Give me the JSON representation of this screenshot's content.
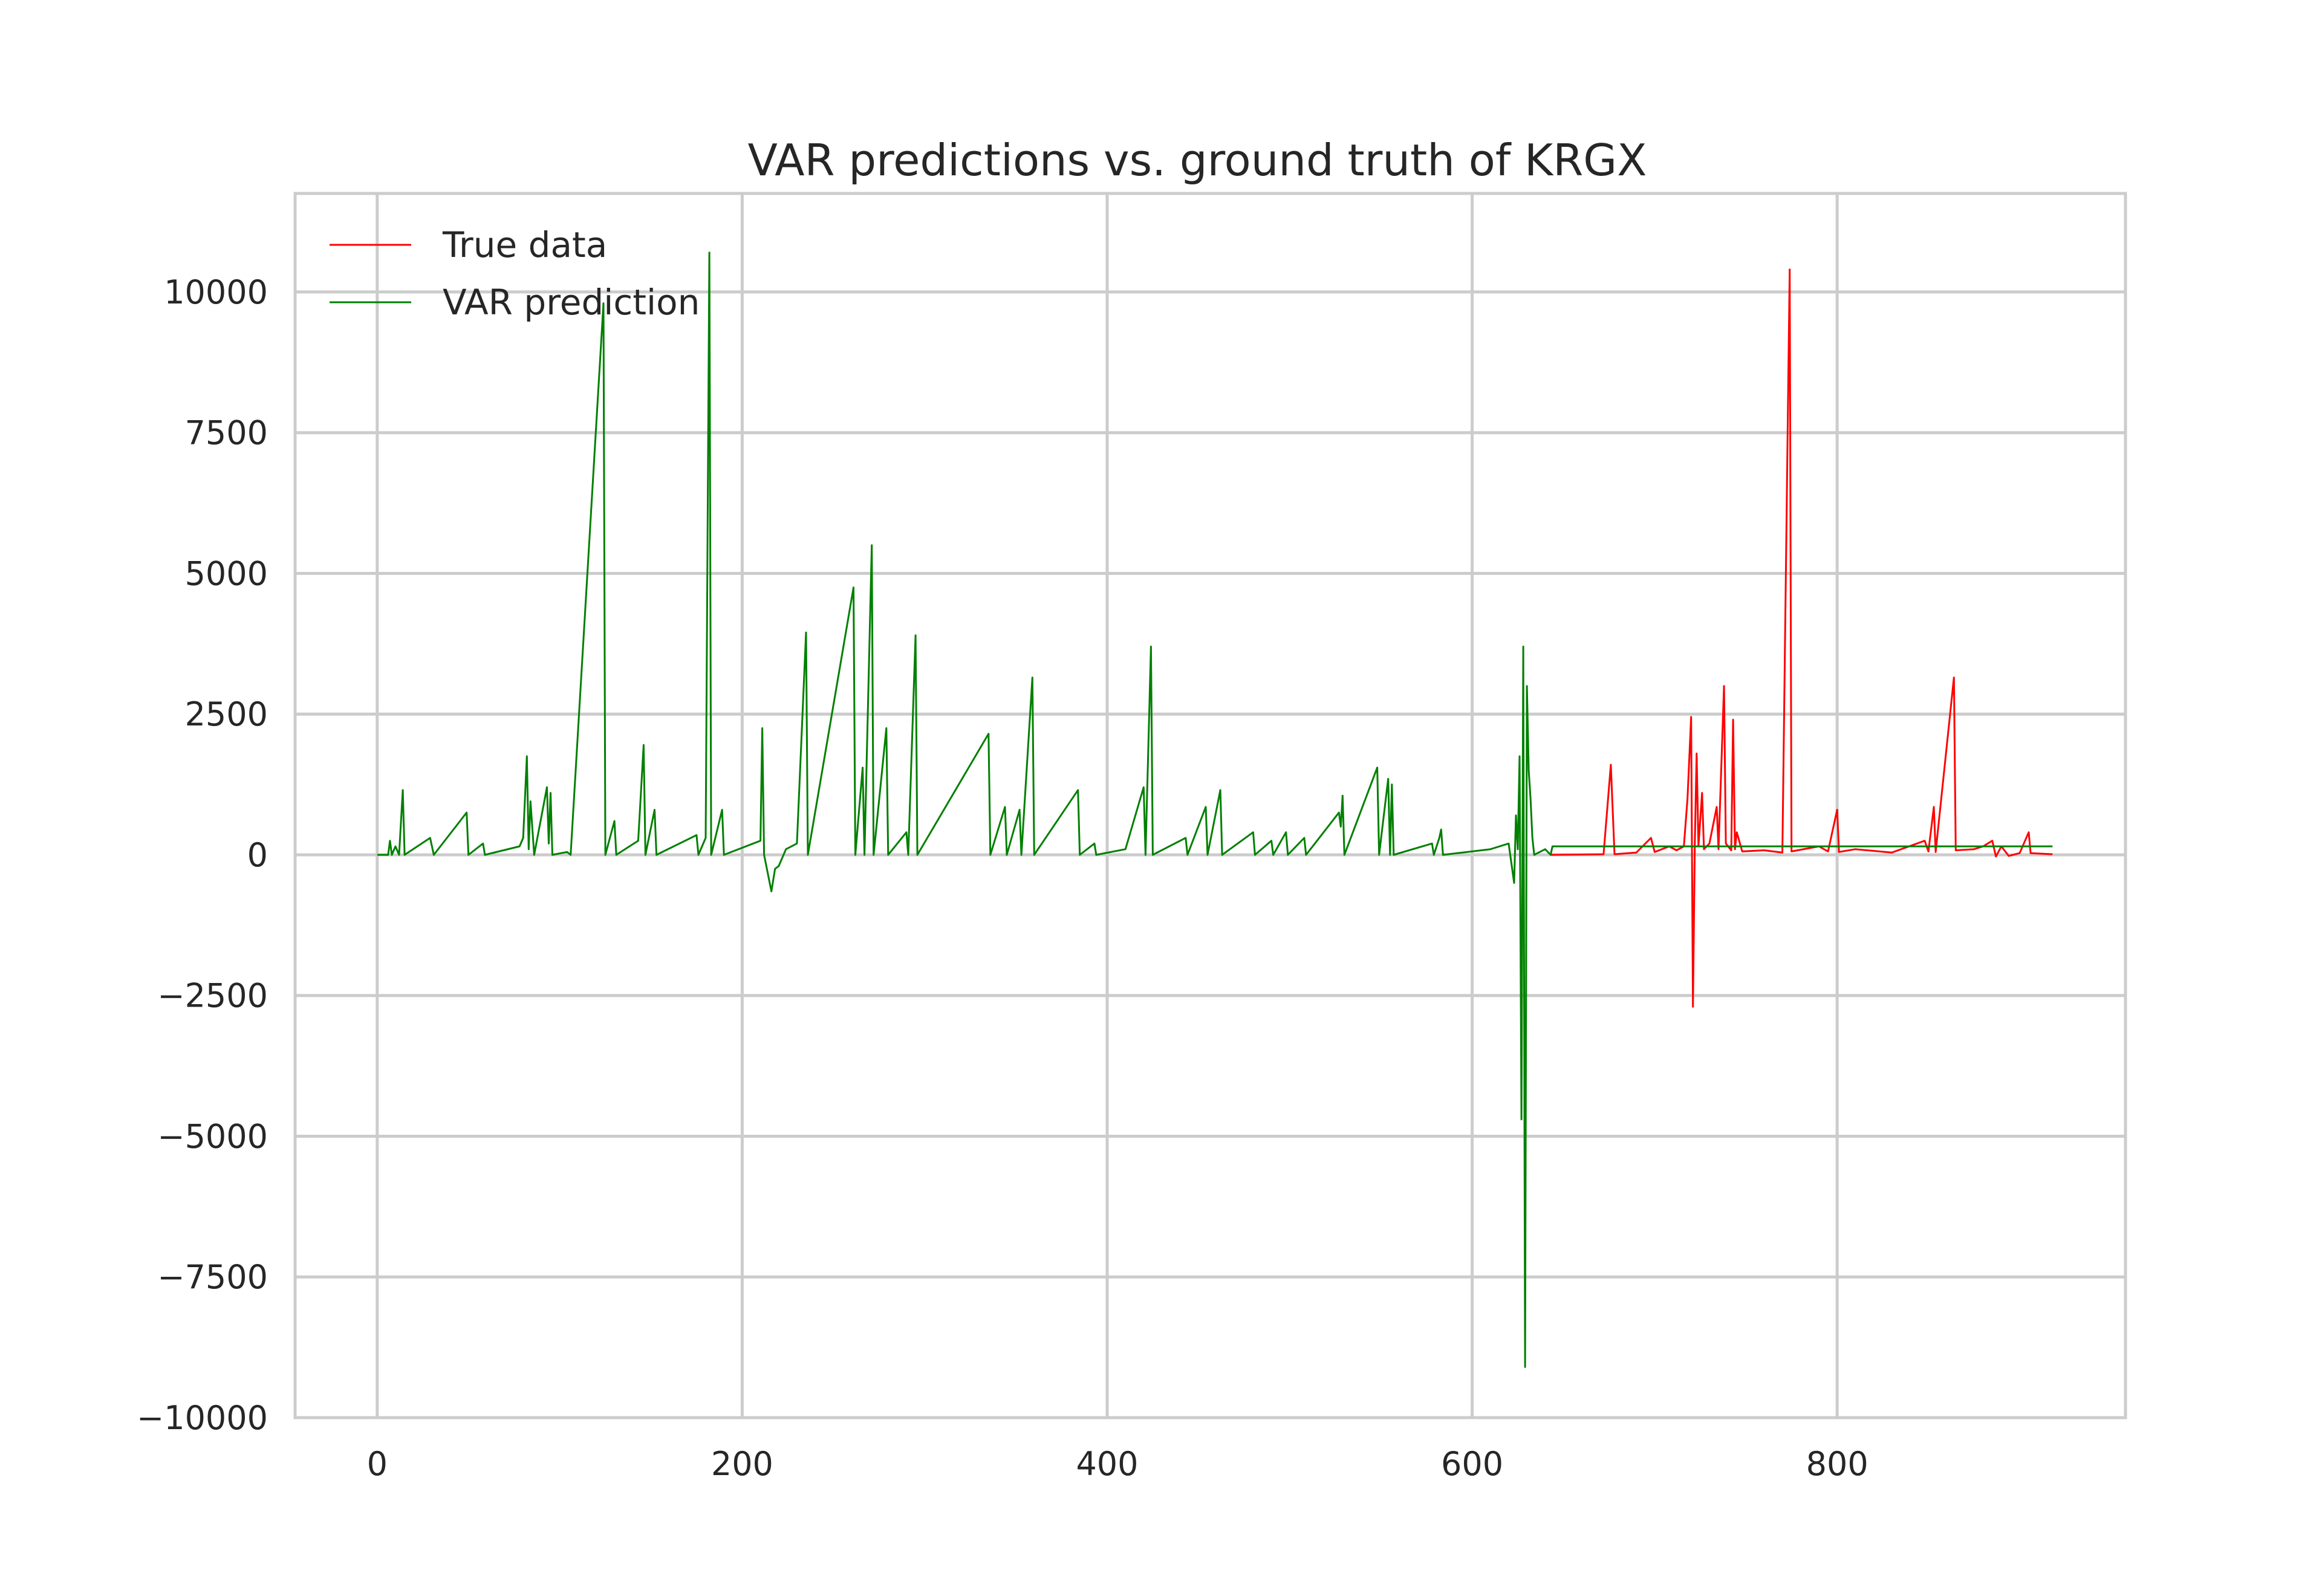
{
  "chart_data": {
    "type": "line",
    "title": "VAR predictions vs. ground truth of KRGX",
    "xlabel": "",
    "ylabel": "",
    "xlim": [
      -45,
      958
    ],
    "ylim": [
      -10000,
      11750
    ],
    "x_ticks": [
      0,
      200,
      400,
      600,
      800
    ],
    "x_tick_labels": [
      "0",
      "200",
      "400",
      "600",
      "800"
    ],
    "y_ticks": [
      -10000,
      -7500,
      -5000,
      -2500,
      0,
      2500,
      5000,
      7500,
      10000
    ],
    "y_tick_labels": [
      "−10000",
      "−7500",
      "−5000",
      "−2500",
      "0",
      "2500",
      "5000",
      "7500",
      "10000"
    ],
    "grid": true,
    "legend_position": "top-left",
    "colors": {
      "true_data": "#ff0000",
      "var_prediction": "#008000",
      "grid": "#cccccc",
      "frame": "#cccccc"
    },
    "series": [
      {
        "name": "True data",
        "color": "#ff0000",
        "points": [
          [
            643,
            0
          ],
          [
            660,
            5
          ],
          [
            672,
            10
          ],
          [
            676,
            1600
          ],
          [
            678,
            10
          ],
          [
            690,
            40
          ],
          [
            698,
            300
          ],
          [
            700,
            50
          ],
          [
            708,
            150
          ],
          [
            712,
            80
          ],
          [
            716,
            150
          ],
          [
            718,
            1000
          ],
          [
            720,
            2450
          ],
          [
            721,
            -2700
          ],
          [
            722,
            200
          ],
          [
            723,
            1800
          ],
          [
            724,
            150
          ],
          [
            726,
            1100
          ],
          [
            727,
            100
          ],
          [
            730,
            200
          ],
          [
            734,
            850
          ],
          [
            735,
            100
          ],
          [
            738,
            3000
          ],
          [
            739,
            200
          ],
          [
            742,
            80
          ],
          [
            743,
            2400
          ],
          [
            744,
            100
          ],
          [
            745,
            400
          ],
          [
            748,
            60
          ],
          [
            760,
            80
          ],
          [
            770,
            40
          ],
          [
            774,
            10400
          ],
          [
            775,
            60
          ],
          [
            790,
            150
          ],
          [
            795,
            60
          ],
          [
            800,
            800
          ],
          [
            801,
            50
          ],
          [
            810,
            100
          ],
          [
            830,
            40
          ],
          [
            848,
            250
          ],
          [
            850,
            60
          ],
          [
            853,
            850
          ],
          [
            854,
            50
          ],
          [
            864,
            3150
          ],
          [
            865,
            80
          ],
          [
            875,
            100
          ],
          [
            880,
            150
          ],
          [
            885,
            250
          ],
          [
            887,
            -30
          ],
          [
            890,
            150
          ],
          [
            894,
            -20
          ],
          [
            900,
            30
          ],
          [
            905,
            400
          ],
          [
            906,
            30
          ],
          [
            918,
            10
          ]
        ]
      },
      {
        "name": "VAR prediction",
        "color": "#008000",
        "points": [
          [
            0,
            0
          ],
          [
            6,
            0
          ],
          [
            7,
            250
          ],
          [
            8,
            0
          ],
          [
            10,
            150
          ],
          [
            12,
            0
          ],
          [
            14,
            1150
          ],
          [
            15,
            0
          ],
          [
            29,
            300
          ],
          [
            31,
            0
          ],
          [
            49,
            750
          ],
          [
            50,
            0
          ],
          [
            58,
            200
          ],
          [
            59,
            0
          ],
          [
            78,
            150
          ],
          [
            80,
            300
          ],
          [
            82,
            1750
          ],
          [
            83,
            100
          ],
          [
            84,
            950
          ],
          [
            86,
            0
          ],
          [
            93,
            1200
          ],
          [
            94,
            200
          ],
          [
            95,
            1100
          ],
          [
            96,
            0
          ],
          [
            104,
            50
          ],
          [
            106,
            0
          ],
          [
            124,
            9800
          ],
          [
            125,
            0
          ],
          [
            130,
            600
          ],
          [
            131,
            0
          ],
          [
            143,
            250
          ],
          [
            146,
            1950
          ],
          [
            147,
            0
          ],
          [
            152,
            800
          ],
          [
            153,
            0
          ],
          [
            175,
            350
          ],
          [
            176,
            0
          ],
          [
            180,
            300
          ],
          [
            182,
            10700
          ],
          [
            183,
            0
          ],
          [
            189,
            800
          ],
          [
            190,
            0
          ],
          [
            210,
            250
          ],
          [
            211,
            2250
          ],
          [
            212,
            0
          ],
          [
            216,
            -650
          ],
          [
            218,
            -250
          ],
          [
            220,
            -200
          ],
          [
            224,
            100
          ],
          [
            230,
            200
          ],
          [
            235,
            3950
          ],
          [
            236,
            0
          ],
          [
            261,
            4750
          ],
          [
            262,
            0
          ],
          [
            266,
            1550
          ],
          [
            267,
            0
          ],
          [
            271,
            5500
          ],
          [
            272,
            0
          ],
          [
            279,
            2250
          ],
          [
            280,
            0
          ],
          [
            290,
            400
          ],
          [
            291,
            0
          ],
          [
            295,
            3900
          ],
          [
            296,
            0
          ],
          [
            335,
            2150
          ],
          [
            336,
            0
          ],
          [
            344,
            850
          ],
          [
            345,
            0
          ],
          [
            352,
            800
          ],
          [
            353,
            0
          ],
          [
            359,
            3150
          ],
          [
            360,
            0
          ],
          [
            384,
            1150
          ],
          [
            385,
            0
          ],
          [
            393,
            200
          ],
          [
            394,
            0
          ],
          [
            410,
            100
          ],
          [
            420,
            1200
          ],
          [
            421,
            0
          ],
          [
            424,
            3700
          ],
          [
            425,
            0
          ],
          [
            443,
            300
          ],
          [
            444,
            0
          ],
          [
            454,
            850
          ],
          [
            455,
            0
          ],
          [
            462,
            1150
          ],
          [
            463,
            0
          ],
          [
            480,
            400
          ],
          [
            481,
            0
          ],
          [
            490,
            250
          ],
          [
            491,
            0
          ],
          [
            498,
            400
          ],
          [
            499,
            0
          ],
          [
            508,
            300
          ],
          [
            509,
            0
          ],
          [
            527,
            750
          ],
          [
            528,
            500
          ],
          [
            529,
            1050
          ],
          [
            530,
            0
          ],
          [
            548,
            1550
          ],
          [
            549,
            0
          ],
          [
            554,
            1350
          ],
          [
            555,
            0
          ],
          [
            556,
            1250
          ],
          [
            557,
            0
          ],
          [
            578,
            200
          ],
          [
            579,
            0
          ],
          [
            582,
            300
          ],
          [
            583,
            450
          ],
          [
            584,
            0
          ],
          [
            610,
            100
          ],
          [
            620,
            200
          ],
          [
            623,
            -500
          ],
          [
            624,
            700
          ],
          [
            625,
            100
          ],
          [
            626,
            1750
          ],
          [
            627,
            -4700
          ],
          [
            628,
            3700
          ],
          [
            629,
            -9100
          ],
          [
            630,
            3000
          ],
          [
            631,
            1500
          ],
          [
            632,
            1000
          ],
          [
            633,
            300
          ],
          [
            634,
            0
          ],
          [
            640,
            100
          ],
          [
            643,
            0
          ],
          [
            644,
            150
          ],
          [
            918,
            150
          ]
        ]
      }
    ]
  }
}
